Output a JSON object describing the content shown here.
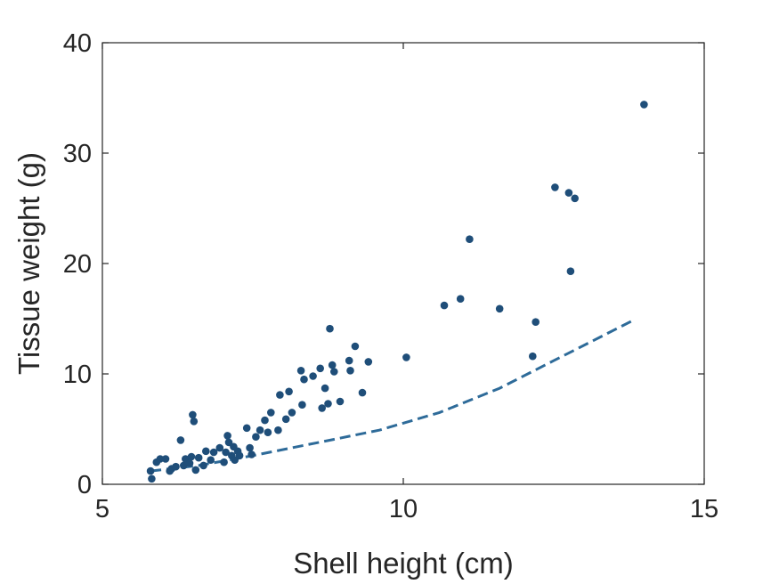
{
  "chart_data": {
    "type": "scatter",
    "title": "",
    "xlabel": "Shell height (cm)",
    "ylabel": "Tissue weight (g)",
    "xlim": [
      5,
      15
    ],
    "ylim": [
      0,
      40
    ],
    "xticks": [
      5,
      10,
      15
    ],
    "yticks": [
      0,
      10,
      20,
      30,
      40
    ],
    "xtick_labels": [
      "5",
      "10",
      "15"
    ],
    "ytick_labels": [
      "0",
      "10",
      "20",
      "30",
      "40"
    ],
    "grid": false,
    "box": true,
    "colors": {
      "points": "#1f4e79",
      "fit_line": "#2e6b99",
      "axes": "#262626"
    },
    "series": [
      {
        "kind": "points",
        "x": [
          5.8,
          5.82,
          5.9,
          5.96,
          6.05,
          6.15,
          6.12,
          6.22,
          6.3,
          6.35,
          6.38,
          6.45,
          6.48,
          6.5,
          6.52,
          6.55,
          6.6,
          6.68,
          6.72,
          6.8,
          6.85,
          6.95,
          7.02,
          7.05,
          7.08,
          7.1,
          7.15,
          7.18,
          7.2,
          7.25,
          7.28,
          7.4,
          7.45,
          7.48,
          7.55,
          7.62,
          7.7,
          7.75,
          7.8,
          7.92,
          7.95,
          8.05,
          8.1,
          8.15,
          8.3,
          8.32,
          8.35,
          8.5,
          8.62,
          8.65,
          8.7,
          8.75,
          8.78,
          8.82,
          8.85,
          8.95,
          9.1,
          9.12,
          9.2,
          9.32,
          9.42,
          10.05,
          10.68,
          10.95,
          11.1,
          11.6,
          12.15,
          12.2,
          12.52,
          12.75,
          12.78,
          12.85,
          14.0
        ],
        "y": [
          1.2,
          0.5,
          2.0,
          2.3,
          2.3,
          1.4,
          1.2,
          1.6,
          4.0,
          1.7,
          2.3,
          1.9,
          2.5,
          6.3,
          5.7,
          1.3,
          2.4,
          1.7,
          3.0,
          2.2,
          2.9,
          3.3,
          2.0,
          2.9,
          4.4,
          3.8,
          2.6,
          3.4,
          2.2,
          3.0,
          2.6,
          5.1,
          3.3,
          2.7,
          4.3,
          4.9,
          5.8,
          4.7,
          6.5,
          4.9,
          8.1,
          5.9,
          8.4,
          6.5,
          10.3,
          7.2,
          9.5,
          9.8,
          10.5,
          6.9,
          8.7,
          7.3,
          14.1,
          10.8,
          10.2,
          7.5,
          11.2,
          10.3,
          12.5,
          8.3,
          11.1,
          11.5,
          16.2,
          16.8,
          22.2,
          15.9,
          11.6,
          14.7,
          26.9,
          26.4,
          19.3,
          25.9,
          34.4
        ]
      },
      {
        "kind": "fit_line",
        "style": "dashed",
        "x": [
          5.8,
          6.6,
          7.5,
          8.6,
          9.6,
          10.6,
          11.6,
          12.5,
          13.8
        ],
        "y": [
          1.2,
          1.7,
          2.6,
          3.8,
          4.9,
          6.5,
          8.7,
          11.2,
          14.8
        ]
      }
    ]
  }
}
